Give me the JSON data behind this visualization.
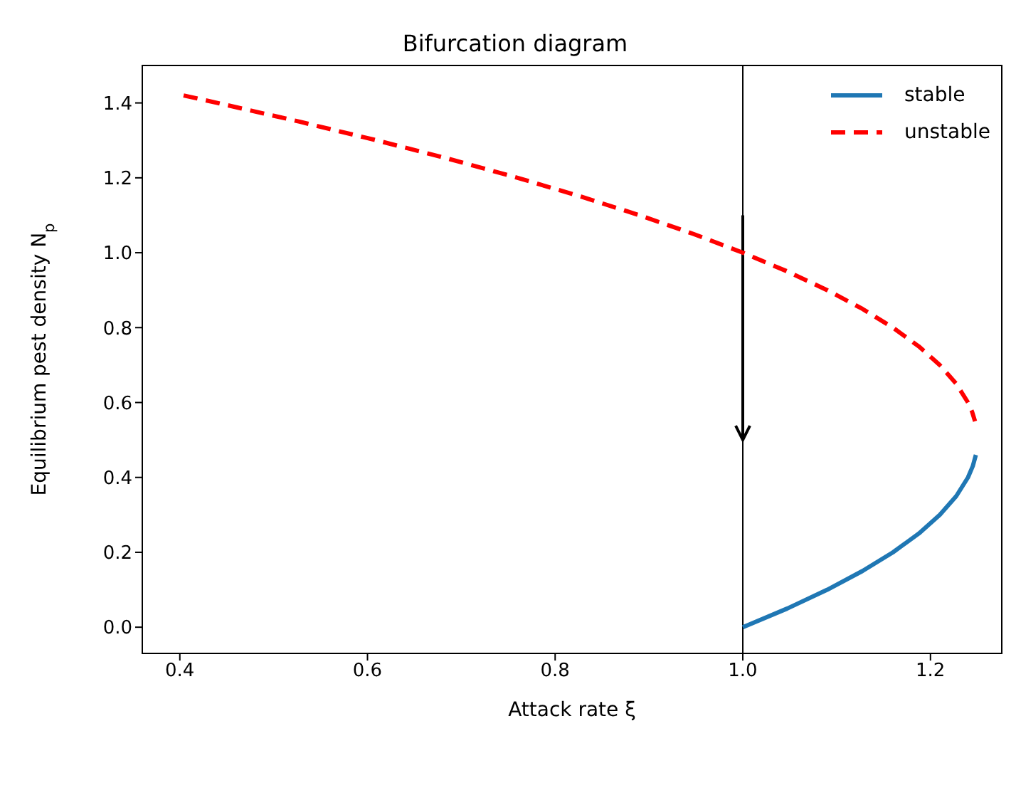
{
  "chart_data": {
    "type": "line",
    "title": "Bifurcation diagram",
    "xlabel": "Attack rate ξ",
    "ylabel": "Equilibrium pest density N$_{p}$",
    "series": [
      {
        "name": "stable",
        "color": "#1f77b4",
        "line_style": "solid",
        "x": [
          1.0,
          1.0475,
          1.09,
          1.1275,
          1.16,
          1.1875,
          1.21,
          1.2275,
          1.24,
          1.2451,
          1.2484
        ],
        "values": [
          0.0,
          0.05,
          0.1,
          0.15,
          0.2,
          0.25,
          0.3,
          0.35,
          0.4,
          0.43,
          0.46
        ]
      },
      {
        "name": "unstable",
        "color": "#ff0000",
        "line_style": "dashed",
        "x": [
          0.404,
          0.44,
          0.5275,
          0.61,
          0.6875,
          0.76,
          0.8275,
          0.89,
          0.9475,
          1.0,
          1.0475,
          1.09,
          1.1275,
          1.16,
          1.1875,
          1.21,
          1.2275,
          1.24,
          1.2444,
          1.2475
        ],
        "values": [
          1.42,
          1.4,
          1.35,
          1.3,
          1.25,
          1.2,
          1.15,
          1.1,
          1.05,
          1.0,
          0.95,
          0.9,
          0.85,
          0.8,
          0.75,
          0.7,
          0.65,
          0.6,
          0.575,
          0.55
        ]
      }
    ],
    "xlim": [
      0.36,
      1.276
    ],
    "ylim": [
      -0.07,
      1.5
    ],
    "xticks": [
      {
        "value": 0.4,
        "label": "0.4"
      },
      {
        "value": 0.6,
        "label": "0.6"
      },
      {
        "value": 0.8,
        "label": "0.8"
      },
      {
        "value": 1.0,
        "label": "1.0"
      },
      {
        "value": 1.2,
        "label": "1.2"
      }
    ],
    "yticks": [
      {
        "value": 0,
        "label": "0.0"
      },
      {
        "value": 0.2,
        "label": "0.2"
      },
      {
        "value": 0.4,
        "label": "0.4"
      },
      {
        "value": 0.6,
        "label": "0.6"
      },
      {
        "value": 0.8,
        "label": "0.8"
      },
      {
        "value": 1.0,
        "label": "1.0"
      },
      {
        "value": 1.2,
        "label": "1.2"
      },
      {
        "value": 1.4,
        "label": "1.4"
      }
    ],
    "ref_lines": [
      {
        "axis": "x",
        "value": 1.0,
        "color": "#000000"
      }
    ],
    "legend": "top right",
    "marker": "none"
  }
}
